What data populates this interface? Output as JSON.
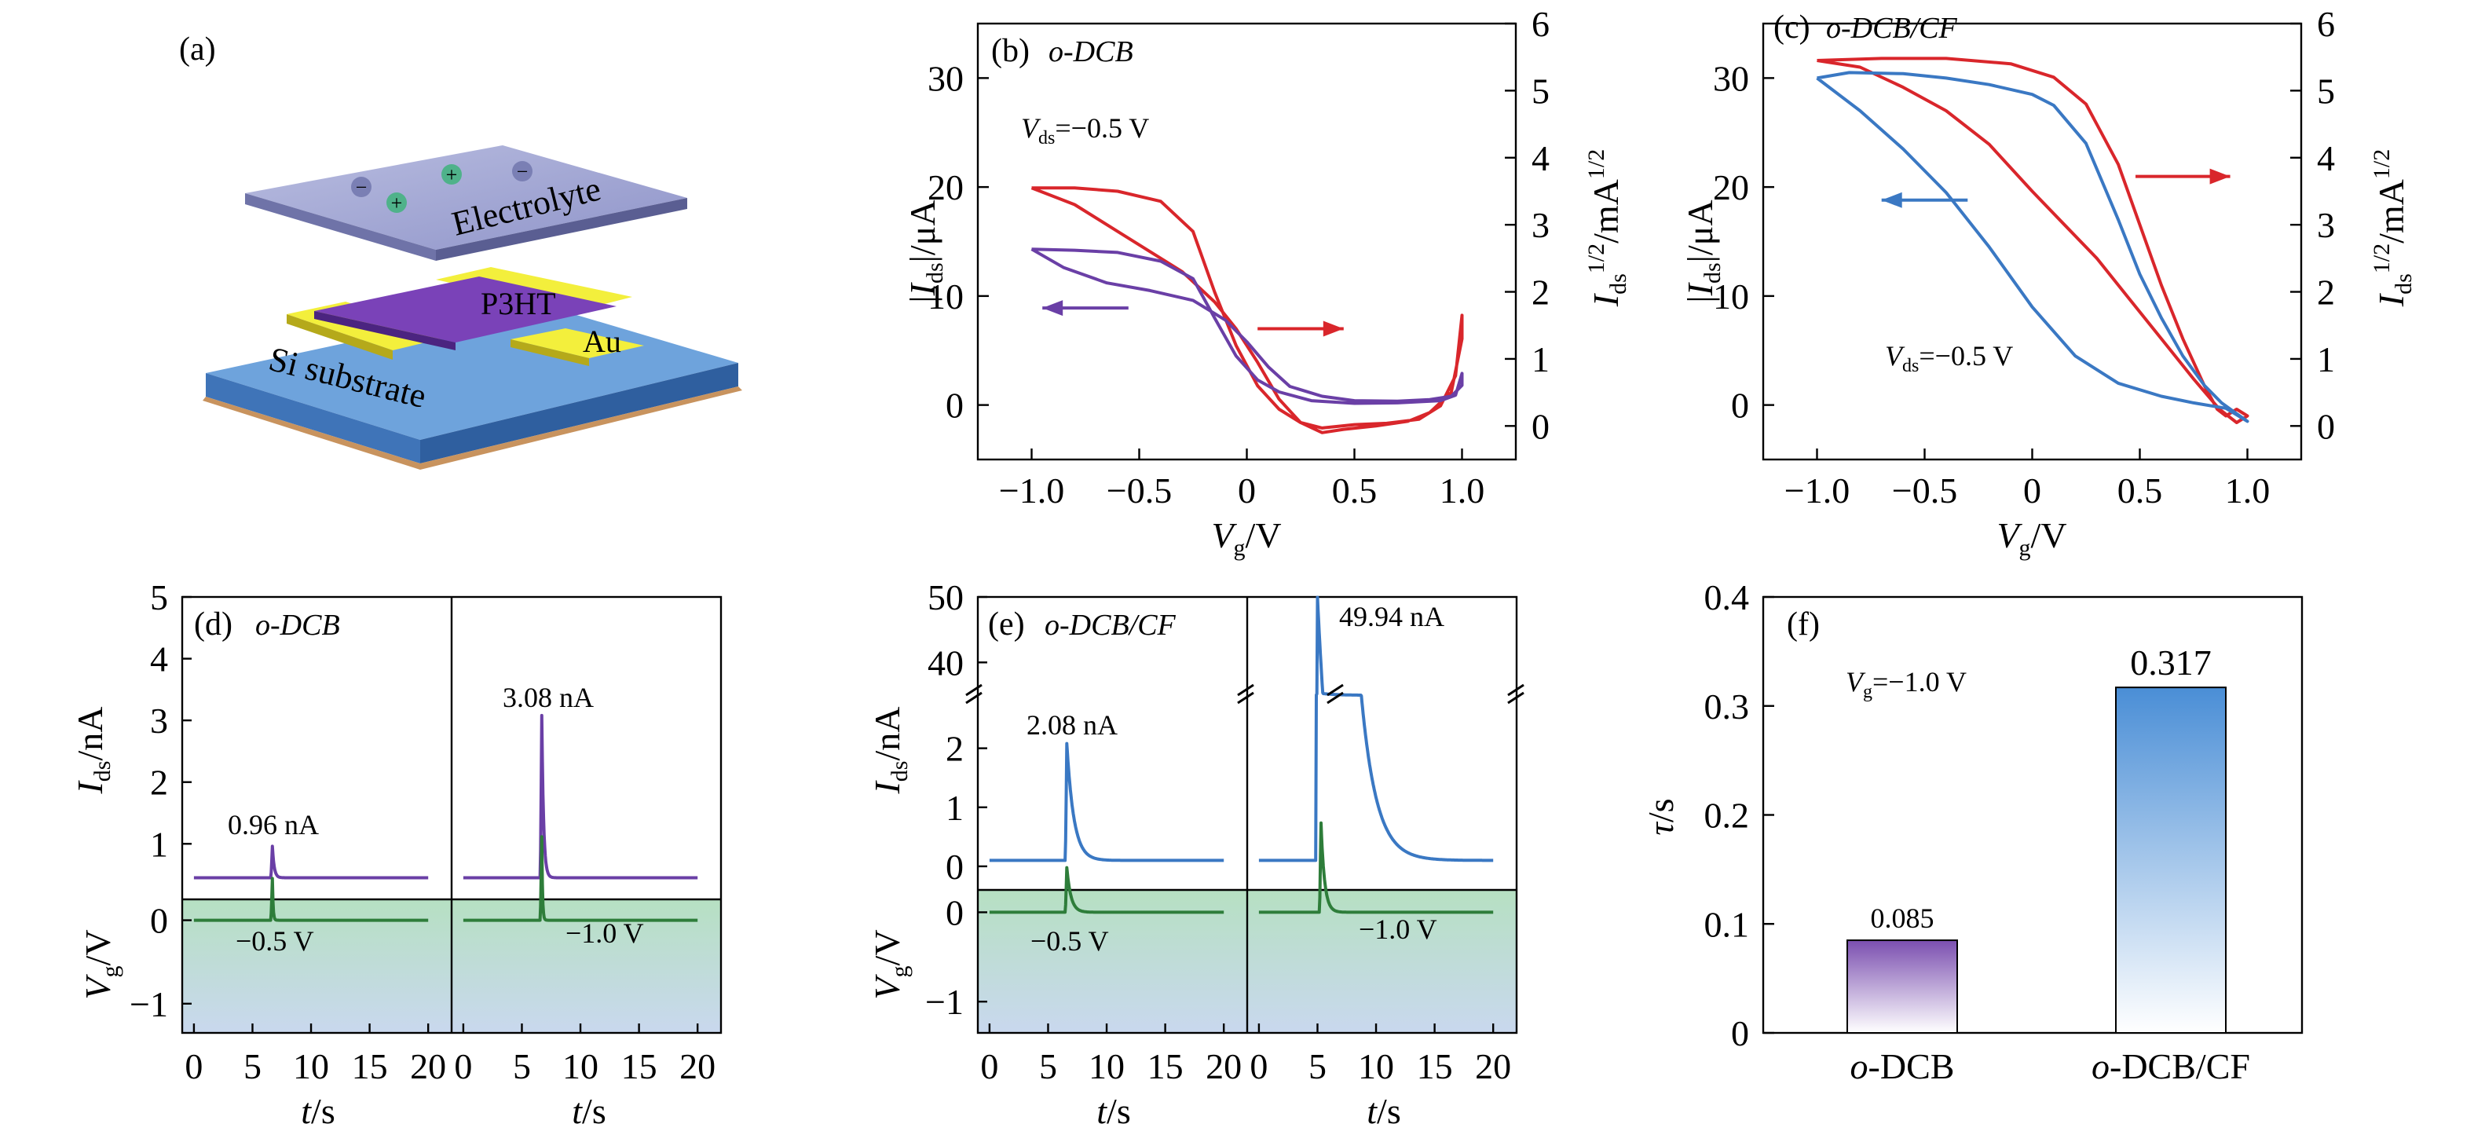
{
  "panel_a": {
    "label": "(a)",
    "layers": {
      "electrolyte": "Electrolyte",
      "semiconductor": "P3HT",
      "electrode": "Au",
      "substrate": "Si substrate"
    },
    "ion_symbols": [
      "−",
      "+",
      "+",
      "−",
      "−",
      "+"
    ]
  },
  "panel_b": {
    "label": "(b)",
    "sample": "o-DCB",
    "vds_annotation": "=−0.5 V",
    "vds_symbol": "V",
    "vds_sub": "ds"
  },
  "panel_c": {
    "label": "(c)",
    "sample": "o-DCB/CF",
    "vds_annotation": "=−0.5 V",
    "vds_symbol": "V",
    "vds_sub": "ds"
  },
  "panel_d": {
    "label": "(d)",
    "sample": "o-DCB",
    "peak_left": "0.96 nA",
    "peak_right": "3.08 nA",
    "vg_left": "−0.5 V",
    "vg_right": "−1.0 V"
  },
  "panel_e": {
    "label": "(e)",
    "sample": "o-DCB/CF",
    "peak_left": "2.08 nA",
    "peak_right": "49.94 nA",
    "vg_left": "−0.5 V",
    "vg_right": "−1.0 V"
  },
  "panel_f": {
    "label": "(f)",
    "vg_annotation": "=−1.0 V",
    "vg_symbol": "V",
    "vg_sub": "g"
  },
  "chart_data": [
    {
      "id": "b",
      "type": "line",
      "title": "o-DCB",
      "xlabel": "Vg/V",
      "ylabel_left": "|Ids|/μA",
      "ylabel_right": "Ids^1/2/mA^1/2",
      "xlim": [
        -1.25,
        1.25
      ],
      "ylim_left": [
        -5,
        35
      ],
      "ylim_right": [
        -0.5,
        6
      ],
      "x_ticks": [
        "−1.0",
        "−0.5",
        "0",
        "0.5",
        "1.0"
      ],
      "x_tick_values": [
        -1.0,
        -0.5,
        0,
        0.5,
        1.0
      ],
      "y_left_ticks": [
        "0",
        "10",
        "20",
        "30"
      ],
      "y_left_tick_values": [
        0,
        10,
        20,
        30
      ],
      "y_right_ticks": [
        "0",
        "1",
        "2",
        "3",
        "4",
        "5",
        "6"
      ],
      "y_right_tick_values": [
        0,
        1,
        2,
        3,
        4,
        5,
        6
      ],
      "series": [
        {
          "color": "#d9262b",
          "axis": "right",
          "points": [
            [
              -1.0,
              3.55
            ],
            [
              -0.8,
              3.55
            ],
            [
              -0.6,
              3.5
            ],
            [
              -0.4,
              3.35
            ],
            [
              -0.25,
              2.9
            ],
            [
              -0.15,
              2.0
            ],
            [
              -0.05,
              1.2
            ],
            [
              0.05,
              0.6
            ],
            [
              0.15,
              0.25
            ],
            [
              0.25,
              0.05
            ],
            [
              0.35,
              -0.03
            ],
            [
              0.5,
              0.02
            ],
            [
              0.65,
              0.04
            ],
            [
              0.8,
              0.1
            ],
            [
              0.9,
              0.3
            ],
            [
              0.97,
              0.75
            ],
            [
              1.0,
              1.65
            ],
            [
              1.0,
              1.3
            ],
            [
              0.95,
              0.5
            ],
            [
              0.85,
              0.2
            ],
            [
              0.75,
              0.07
            ],
            [
              0.6,
              0.0
            ],
            [
              0.45,
              -0.05
            ],
            [
              0.35,
              -0.1
            ],
            [
              0.25,
              0.05
            ],
            [
              0.15,
              0.4
            ],
            [
              0.05,
              0.95
            ],
            [
              -0.05,
              1.45
            ],
            [
              -0.15,
              1.85
            ],
            [
              -0.3,
              2.3
            ],
            [
              -0.45,
              2.6
            ],
            [
              -0.6,
              2.9
            ],
            [
              -0.8,
              3.3
            ],
            [
              -1.0,
              3.55
            ]
          ]
        },
        {
          "color": "#6a3fa6",
          "axis": "left",
          "points": [
            [
              -1.0,
              14.3
            ],
            [
              -0.8,
              14.2
            ],
            [
              -0.6,
              14.0
            ],
            [
              -0.4,
              13.2
            ],
            [
              -0.25,
              11.6
            ],
            [
              -0.15,
              8.0
            ],
            [
              -0.05,
              4.5
            ],
            [
              0.05,
              2.3
            ],
            [
              0.15,
              1.2
            ],
            [
              0.3,
              0.4
            ],
            [
              0.5,
              0.15
            ],
            [
              0.7,
              0.2
            ],
            [
              0.9,
              0.4
            ],
            [
              0.97,
              0.9
            ],
            [
              1.0,
              2.9
            ],
            [
              1.0,
              1.8
            ],
            [
              0.95,
              0.8
            ],
            [
              0.85,
              0.5
            ],
            [
              0.7,
              0.35
            ],
            [
              0.5,
              0.4
            ],
            [
              0.35,
              0.8
            ],
            [
              0.2,
              1.7
            ],
            [
              0.1,
              3.5
            ],
            [
              0.0,
              5.8
            ],
            [
              -0.1,
              7.8
            ],
            [
              -0.25,
              9.6
            ],
            [
              -0.45,
              10.5
            ],
            [
              -0.65,
              11.2
            ],
            [
              -0.85,
              12.6
            ],
            [
              -1.0,
              14.3
            ]
          ]
        }
      ],
      "arrows": [
        {
          "color": "#d9262b",
          "direction": "right",
          "axis": "right",
          "x": [
            0.05,
            0.45
          ],
          "y": 1.45
        },
        {
          "color": "#6a3fa6",
          "direction": "left",
          "axis": "left",
          "x": [
            -0.55,
            -0.95
          ],
          "y": 8.9
        }
      ]
    },
    {
      "id": "c",
      "type": "line",
      "title": "o-DCB/CF",
      "xlabel": "Vg/V",
      "ylabel_left": "|Ids|/μA",
      "ylabel_right": "Ids^1/2/mA^1/2",
      "xlim": [
        -1.25,
        1.25
      ],
      "ylim_left": [
        -5,
        35
      ],
      "ylim_right": [
        -0.5,
        6
      ],
      "x_ticks": [
        "−1.0",
        "−0.5",
        "0",
        "0.5",
        "1.0"
      ],
      "x_tick_values": [
        -1.0,
        -0.5,
        0,
        0.5,
        1.0
      ],
      "y_left_ticks": [
        "0",
        "10",
        "20",
        "30"
      ],
      "y_left_tick_values": [
        0,
        10,
        20,
        30
      ],
      "y_right_ticks": [
        "0",
        "1",
        "2",
        "3",
        "4",
        "5",
        "6"
      ],
      "y_right_tick_values": [
        0,
        1,
        2,
        3,
        4,
        5,
        6
      ],
      "series": [
        {
          "color": "#d9262b",
          "axis": "right",
          "points": [
            [
              -1.0,
              5.45
            ],
            [
              -0.7,
              5.48
            ],
            [
              -0.4,
              5.48
            ],
            [
              -0.1,
              5.4
            ],
            [
              0.1,
              5.2
            ],
            [
              0.25,
              4.8
            ],
            [
              0.4,
              3.9
            ],
            [
              0.5,
              3.0
            ],
            [
              0.6,
              2.1
            ],
            [
              0.7,
              1.3
            ],
            [
              0.8,
              0.6
            ],
            [
              0.86,
              0.25
            ],
            [
              0.9,
              0.15
            ],
            [
              0.95,
              0.25
            ],
            [
              1.0,
              0.15
            ],
            [
              0.95,
              0.05
            ],
            [
              0.87,
              0.25
            ],
            [
              0.75,
              0.7
            ],
            [
              0.6,
              1.3
            ],
            [
              0.45,
              1.9
            ],
            [
              0.3,
              2.5
            ],
            [
              0.15,
              3.0
            ],
            [
              0.0,
              3.5
            ],
            [
              -0.2,
              4.2
            ],
            [
              -0.4,
              4.7
            ],
            [
              -0.6,
              5.05
            ],
            [
              -0.8,
              5.35
            ],
            [
              -1.0,
              5.45
            ]
          ]
        },
        {
          "color": "#3a78c3",
          "axis": "left",
          "points": [
            [
              -1.0,
              30.0
            ],
            [
              -0.85,
              30.5
            ],
            [
              -0.6,
              30.4
            ],
            [
              -0.4,
              30.0
            ],
            [
              -0.2,
              29.4
            ],
            [
              0.0,
              28.5
            ],
            [
              0.1,
              27.5
            ],
            [
              0.25,
              24.0
            ],
            [
              0.4,
              17.0
            ],
            [
              0.5,
              12.0
            ],
            [
              0.6,
              8.0
            ],
            [
              0.7,
              4.5
            ],
            [
              0.8,
              1.8
            ],
            [
              0.88,
              0.2
            ],
            [
              0.95,
              -0.8
            ],
            [
              1.0,
              -1.5
            ],
            [
              0.9,
              -0.3
            ],
            [
              0.75,
              0.2
            ],
            [
              0.6,
              0.8
            ],
            [
              0.4,
              2.0
            ],
            [
              0.2,
              4.5
            ],
            [
              0.0,
              9.0
            ],
            [
              -0.2,
              14.5
            ],
            [
              -0.4,
              19.5
            ],
            [
              -0.6,
              23.5
            ],
            [
              -0.8,
              27.0
            ],
            [
              -1.0,
              30.0
            ]
          ]
        }
      ],
      "arrows": [
        {
          "color": "#d9262b",
          "direction": "right",
          "axis": "right",
          "x": [
            0.48,
            0.92
          ],
          "y": 3.72
        },
        {
          "color": "#3a78c3",
          "direction": "left",
          "axis": "left",
          "x": [
            -0.3,
            -0.7
          ],
          "y": 18.8
        }
      ]
    },
    {
      "id": "d",
      "type": "line",
      "title": "o-DCB",
      "xlabel": "t/s",
      "ylabel_top": "Ids/nA",
      "ylabel_bottom": "Vg/V",
      "xlim": [
        -1,
        22
      ],
      "ylim_top": [
        0.1,
        5
      ],
      "ylim_bottom": [
        -1.35,
        0.25
      ],
      "x_ticks": [
        "0",
        "5",
        "10",
        "15",
        "20"
      ],
      "x_tick_values": [
        0,
        5,
        10,
        15,
        20
      ],
      "y_top_ticks": [
        "1",
        "2",
        "3",
        "4",
        "5"
      ],
      "y_top_tick_values": [
        1,
        2,
        3,
        4,
        5
      ],
      "y_bottom_ticks": [
        "−1",
        "0"
      ],
      "y_bottom_tick_values": [
        -1,
        0
      ],
      "series": [
        {
          "name": "Ids left",
          "color": "#6a3fa6",
          "subplot": "top-left",
          "baseline": 0.45,
          "peak_t": 6.7,
          "peak": 0.96,
          "decay": 0.15
        },
        {
          "name": "Ids right",
          "color": "#6a3fa6",
          "subplot": "top-right",
          "baseline": 0.45,
          "peak_t": 6.7,
          "peak": 3.08,
          "decay": 0.15
        },
        {
          "name": "Vg left",
          "color": "#2e7d3a",
          "subplot": "bottom-left",
          "baseline": 0.0,
          "peak_t": 6.7,
          "peak": -0.5,
          "decay": 0.06
        },
        {
          "name": "Vg right",
          "color": "#2e7d3a",
          "subplot": "bottom-right",
          "baseline": 0.0,
          "peak_t": 6.7,
          "peak": -1.0,
          "decay": 0.06
        }
      ]
    },
    {
      "id": "e",
      "type": "line",
      "title": "o-DCB/CF",
      "xlabel": "t/s",
      "ylabel_top": "Ids/nA",
      "ylabel_bottom": "Vg/V",
      "xlim": [
        -1,
        22
      ],
      "ylim_top_lower": [
        -0.4,
        2.9
      ],
      "ylim_top_upper": [
        35,
        50
      ],
      "ylim_bottom": [
        -1.35,
        0.25
      ],
      "x_ticks": [
        "0",
        "5",
        "10",
        "15",
        "20"
      ],
      "x_tick_values": [
        0,
        5,
        10,
        15,
        20
      ],
      "y_top_ticks": [
        "0",
        "1",
        "2",
        "40",
        "50"
      ],
      "y_top_tick_values": [
        0,
        1,
        2,
        40,
        50
      ],
      "y_bottom_ticks": [
        "−1",
        "0"
      ],
      "y_bottom_tick_values": [
        -1,
        0
      ],
      "series": [
        {
          "name": "Ids left",
          "color": "#3a78c3",
          "subplot": "top-left",
          "baseline": 0.1,
          "peak_t": 6.6,
          "peak": 2.08,
          "decay": 0.6
        },
        {
          "name": "Ids right",
          "color": "#3a78c3",
          "subplot": "top-right",
          "baseline": 0.1,
          "peak_t": 5.0,
          "peak": 49.94,
          "decay": 1.3
        },
        {
          "name": "Vg left",
          "color": "#2e7d3a",
          "subplot": "bottom-left",
          "baseline": 0.0,
          "peak_t": 6.6,
          "peak": -0.5,
          "decay": 0.35
        },
        {
          "name": "Vg right",
          "color": "#2e7d3a",
          "subplot": "bottom-right",
          "baseline": 0.0,
          "peak_t": 5.3,
          "peak": -1.0,
          "decay": 0.3
        }
      ]
    },
    {
      "id": "f",
      "type": "bar",
      "ylabel": "τ/s",
      "ylim": [
        0,
        0.4
      ],
      "y_ticks": [
        "0",
        "0.1",
        "0.2",
        "0.3",
        "0.4"
      ],
      "y_tick_values": [
        0,
        0.1,
        0.2,
        0.3,
        0.4
      ],
      "categories": [
        "o-DCB",
        "o-DCB/CF"
      ],
      "values": [
        0.085,
        0.317
      ],
      "value_labels": [
        "0.085",
        "0.317"
      ],
      "colors": [
        "#7b4fb0",
        "#4a8ed6"
      ]
    }
  ]
}
